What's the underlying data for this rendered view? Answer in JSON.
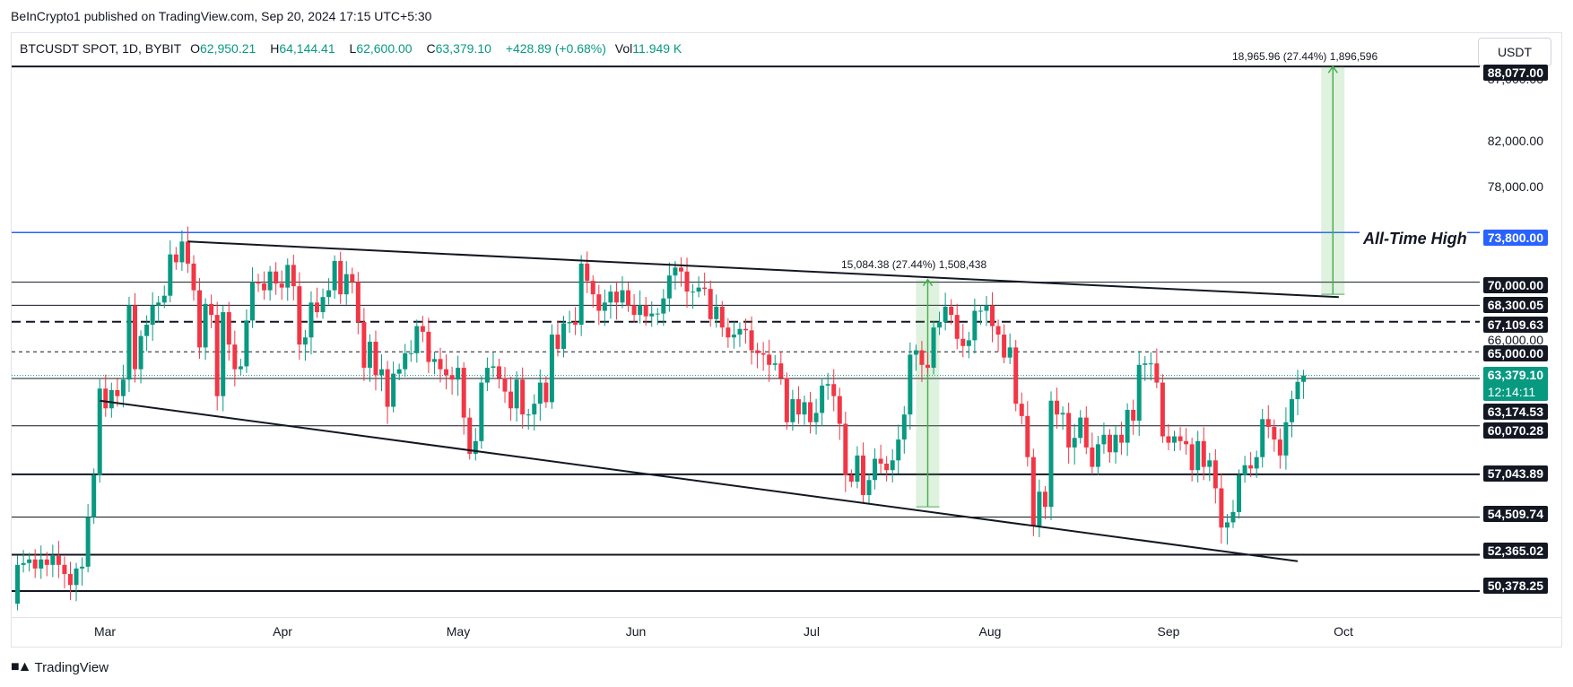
{
  "header": {
    "publish_line": "BeInCrypto1 published on TradingView.com, Sep 20, 2024 17:15 UTC+5:30"
  },
  "ohlc": {
    "symbol": "BTCUSDT SPOT, 1D, BYBIT",
    "open_label": "O",
    "open": "62,950.21",
    "high_label": "H",
    "high": "64,144.41",
    "low_label": "L",
    "low": "62,600.00",
    "close_label": "C",
    "close": "63,379.10",
    "change": "+428.89 (+0.68%)",
    "vol_label": "Vol",
    "vol": "11.949 K"
  },
  "currency_button": "USDT",
  "annotations": {
    "ath_label": "All-Time High",
    "measure_a": "15,084.38 (27.44%) 1,508,438",
    "measure_b": "18,965.96 (27.44%) 1,896,596",
    "countdown": "12:14:11"
  },
  "price_tags": {
    "p88077": "88,077.00",
    "p87000": "87,000.00",
    "p82000": "82,000.00",
    "p78000": "78,000.00",
    "p73800": "73,800.00",
    "p70000": "70,000.00",
    "p68300": "68,300.05",
    "p67109": "67,109.63",
    "p66000": "66,000.00",
    "p65000": "65,000.00",
    "p63379": "63,379.10",
    "p63174": "63,174.53",
    "p60070": "60,070.28",
    "p57043": "57,043.89",
    "p54509": "54,509.74",
    "p52365": "52,365.02",
    "p50378": "50,378.25"
  },
  "months": [
    "Mar",
    "Apr",
    "May",
    "Jun",
    "Jul",
    "Aug",
    "Sep",
    "Oct"
  ],
  "footer": {
    "brand": "TradingView"
  },
  "colors": {
    "up": "#089981",
    "down": "#f23645",
    "ath": "#2962ff",
    "measure": "#4caf50"
  },
  "chart_data": {
    "type": "candlestick",
    "title": "BTCUSDT SPOT, 1D, BYBIT",
    "y_scale": "log",
    "ylim": [
      49000,
      91000
    ],
    "x_range": [
      "2024-02-13",
      "2024-10-20"
    ],
    "x_ticks": [
      "2024-03-01",
      "2024-04-01",
      "2024-05-01",
      "2024-06-01",
      "2024-07-01",
      "2024-08-01",
      "2024-09-01",
      "2024-10-01"
    ],
    "horizontal_levels": [
      {
        "price": 88077,
        "style": "solid-thick"
      },
      {
        "price": 73800,
        "style": "solid-blue"
      },
      {
        "price": 70000,
        "style": "solid"
      },
      {
        "price": 68300.05,
        "style": "solid"
      },
      {
        "price": 67109.63,
        "style": "dashed-thick"
      },
      {
        "price": 65000,
        "style": "dashed"
      },
      {
        "price": 63174.53,
        "style": "solid"
      },
      {
        "price": 60070.28,
        "style": "solid"
      },
      {
        "price": 57043.89,
        "style": "solid-thick"
      },
      {
        "price": 54509.74,
        "style": "solid"
      },
      {
        "price": 52365.02,
        "style": "solid-thick"
      },
      {
        "price": 50378.25,
        "style": "solid-thick"
      }
    ],
    "trendlines": [
      {
        "from": {
          "date": "2024-03-14",
          "price": 73100
        },
        "to": {
          "date": "2024-09-26",
          "price": 68900
        }
      },
      {
        "from": {
          "date": "2024-02-28",
          "price": 61700
        },
        "to": {
          "date": "2024-09-19",
          "price": 52000
        }
      }
    ],
    "measures": [
      {
        "x": "2024-07-18",
        "from": 55100,
        "to": 70200,
        "label": "15,084.38 (27.44%) 1,508,438"
      },
      {
        "x": "2024-09-25",
        "from": 69100,
        "to": 88077,
        "label": "18,965.96 (27.44%) 1,896,596"
      }
    ],
    "close_series": [
      [
        "2024-02-13",
        49700
      ],
      [
        "2024-02-14",
        51800
      ],
      [
        "2024-02-15",
        51900
      ],
      [
        "2024-02-16",
        52100
      ],
      [
        "2024-02-17",
        51600
      ],
      [
        "2024-02-18",
        52100
      ],
      [
        "2024-02-19",
        51800
      ],
      [
        "2024-02-20",
        52300
      ],
      [
        "2024-02-21",
        51800
      ],
      [
        "2024-02-22",
        51300
      ],
      [
        "2024-02-23",
        50700
      ],
      [
        "2024-02-24",
        51600
      ],
      [
        "2024-02-25",
        51700
      ],
      [
        "2024-02-26",
        54500
      ],
      [
        "2024-02-27",
        57000
      ],
      [
        "2024-02-28",
        62500
      ],
      [
        "2024-02-29",
        61200
      ],
      [
        "2024-03-01",
        62400
      ],
      [
        "2024-03-02",
        62000
      ],
      [
        "2024-03-03",
        63100
      ],
      [
        "2024-03-04",
        68300
      ],
      [
        "2024-03-05",
        63800
      ],
      [
        "2024-03-06",
        66100
      ],
      [
        "2024-03-07",
        66900
      ],
      [
        "2024-03-08",
        68300
      ],
      [
        "2024-03-09",
        68500
      ],
      [
        "2024-03-10",
        69000
      ],
      [
        "2024-03-11",
        72100
      ],
      [
        "2024-03-12",
        71500
      ],
      [
        "2024-03-13",
        73100
      ],
      [
        "2024-03-14",
        71400
      ],
      [
        "2024-03-15",
        69400
      ],
      [
        "2024-03-16",
        65300
      ],
      [
        "2024-03-17",
        68400
      ],
      [
        "2024-03-18",
        67600
      ],
      [
        "2024-03-19",
        62000
      ],
      [
        "2024-03-20",
        67800
      ],
      [
        "2024-03-21",
        65500
      ],
      [
        "2024-03-22",
        63800
      ],
      [
        "2024-03-23",
        64000
      ],
      [
        "2024-03-24",
        67200
      ],
      [
        "2024-03-25",
        70000
      ],
      [
        "2024-03-26",
        69900
      ],
      [
        "2024-03-27",
        69400
      ],
      [
        "2024-03-28",
        70800
      ],
      [
        "2024-03-29",
        69900
      ],
      [
        "2024-03-30",
        69600
      ],
      [
        "2024-03-31",
        71300
      ],
      [
        "2024-04-01",
        69700
      ],
      [
        "2024-04-02",
        65500
      ],
      [
        "2024-04-03",
        66000
      ],
      [
        "2024-04-04",
        68500
      ],
      [
        "2024-04-05",
        67800
      ],
      [
        "2024-04-06",
        68900
      ],
      [
        "2024-04-07",
        69400
      ],
      [
        "2024-04-08",
        71600
      ],
      [
        "2024-04-09",
        69100
      ],
      [
        "2024-04-10",
        70600
      ],
      [
        "2024-04-11",
        70000
      ],
      [
        "2024-04-12",
        67100
      ],
      [
        "2024-04-13",
        63900
      ],
      [
        "2024-04-14",
        65700
      ],
      [
        "2024-04-15",
        63400
      ],
      [
        "2024-04-16",
        63800
      ],
      [
        "2024-04-17",
        61300
      ],
      [
        "2024-04-18",
        63500
      ],
      [
        "2024-04-19",
        63800
      ],
      [
        "2024-04-20",
        64900
      ],
      [
        "2024-04-21",
        64900
      ],
      [
        "2024-04-22",
        66800
      ],
      [
        "2024-04-23",
        66400
      ],
      [
        "2024-04-24",
        64300
      ],
      [
        "2024-04-25",
        64500
      ],
      [
        "2024-04-26",
        63800
      ],
      [
        "2024-04-27",
        63400
      ],
      [
        "2024-04-28",
        63100
      ],
      [
        "2024-04-29",
        63900
      ],
      [
        "2024-04-30",
        60600
      ],
      [
        "2024-05-01",
        58300
      ],
      [
        "2024-05-02",
        59100
      ],
      [
        "2024-05-03",
        62900
      ],
      [
        "2024-05-04",
        63900
      ],
      [
        "2024-05-05",
        64000
      ],
      [
        "2024-05-06",
        63200
      ],
      [
        "2024-05-07",
        62300
      ],
      [
        "2024-05-08",
        61200
      ],
      [
        "2024-05-09",
        63100
      ],
      [
        "2024-05-10",
        60800
      ],
      [
        "2024-05-11",
        60800
      ],
      [
        "2024-05-12",
        61500
      ],
      [
        "2024-05-13",
        62900
      ],
      [
        "2024-05-14",
        61600
      ],
      [
        "2024-05-15",
        66200
      ],
      [
        "2024-05-16",
        65200
      ],
      [
        "2024-05-17",
        67000
      ],
      [
        "2024-05-18",
        67100
      ],
      [
        "2024-05-19",
        66900
      ],
      [
        "2024-05-20",
        71400
      ],
      [
        "2024-05-21",
        70100
      ],
      [
        "2024-05-22",
        69100
      ],
      [
        "2024-05-23",
        67900
      ],
      [
        "2024-05-24",
        68500
      ],
      [
        "2024-05-25",
        69300
      ],
      [
        "2024-05-26",
        68500
      ],
      [
        "2024-05-27",
        69400
      ],
      [
        "2024-05-28",
        68300
      ],
      [
        "2024-05-29",
        67600
      ],
      [
        "2024-05-30",
        68300
      ],
      [
        "2024-05-31",
        67500
      ],
      [
        "2024-06-01",
        67700
      ],
      [
        "2024-06-02",
        67700
      ],
      [
        "2024-06-03",
        68800
      ],
      [
        "2024-06-04",
        70500
      ],
      [
        "2024-06-05",
        71100
      ],
      [
        "2024-06-06",
        70800
      ],
      [
        "2024-06-07",
        69300
      ],
      [
        "2024-06-08",
        69300
      ],
      [
        "2024-06-09",
        69600
      ],
      [
        "2024-06-10",
        69500
      ],
      [
        "2024-06-11",
        67300
      ],
      [
        "2024-06-12",
        68200
      ],
      [
        "2024-06-13",
        66700
      ],
      [
        "2024-06-14",
        66000
      ],
      [
        "2024-06-15",
        66200
      ],
      [
        "2024-06-16",
        66600
      ],
      [
        "2024-06-17",
        66500
      ],
      [
        "2024-06-18",
        65100
      ],
      [
        "2024-06-19",
        64900
      ],
      [
        "2024-06-20",
        64800
      ],
      [
        "2024-06-21",
        64100
      ],
      [
        "2024-06-22",
        64200
      ],
      [
        "2024-06-23",
        63200
      ],
      [
        "2024-06-24",
        60300
      ],
      [
        "2024-06-25",
        61800
      ],
      [
        "2024-06-26",
        60800
      ],
      [
        "2024-06-27",
        61600
      ],
      [
        "2024-06-28",
        60300
      ],
      [
        "2024-06-29",
        60900
      ],
      [
        "2024-06-30",
        62700
      ],
      [
        "2024-07-01",
        62800
      ],
      [
        "2024-07-02",
        62000
      ],
      [
        "2024-07-03",
        60200
      ],
      [
        "2024-07-04",
        57000
      ],
      [
        "2024-07-05",
        56600
      ],
      [
        "2024-07-06",
        58200
      ],
      [
        "2024-07-07",
        55800
      ],
      [
        "2024-07-08",
        56700
      ],
      [
        "2024-07-09",
        58000
      ],
      [
        "2024-07-10",
        57700
      ],
      [
        "2024-07-11",
        57300
      ],
      [
        "2024-07-12",
        57900
      ],
      [
        "2024-07-13",
        59200
      ],
      [
        "2024-07-14",
        60800
      ],
      [
        "2024-07-15",
        64800
      ],
      [
        "2024-07-16",
        65100
      ],
      [
        "2024-07-17",
        64100
      ],
      [
        "2024-07-18",
        63900
      ],
      [
        "2024-07-19",
        66700
      ],
      [
        "2024-07-20",
        67100
      ],
      [
        "2024-07-21",
        68200
      ],
      [
        "2024-07-22",
        67600
      ],
      [
        "2024-07-23",
        65900
      ],
      [
        "2024-07-24",
        65400
      ],
      [
        "2024-07-25",
        65800
      ],
      [
        "2024-07-26",
        67900
      ],
      [
        "2024-07-27",
        67900
      ],
      [
        "2024-07-28",
        68300
      ],
      [
        "2024-07-29",
        66800
      ],
      [
        "2024-07-30",
        66200
      ],
      [
        "2024-07-31",
        64600
      ],
      [
        "2024-08-01",
        65300
      ],
      [
        "2024-08-02",
        61500
      ],
      [
        "2024-08-03",
        60700
      ],
      [
        "2024-08-04",
        58100
      ],
      [
        "2024-08-05",
        54000
      ],
      [
        "2024-08-06",
        56000
      ],
      [
        "2024-08-07",
        55100
      ],
      [
        "2024-08-08",
        61700
      ],
      [
        "2024-08-09",
        60800
      ],
      [
        "2024-08-10",
        60900
      ],
      [
        "2024-08-11",
        58700
      ],
      [
        "2024-08-12",
        59300
      ],
      [
        "2024-08-13",
        60600
      ],
      [
        "2024-08-14",
        58700
      ],
      [
        "2024-08-15",
        57500
      ],
      [
        "2024-08-16",
        58900
      ],
      [
        "2024-08-17",
        59500
      ],
      [
        "2024-08-18",
        58400
      ],
      [
        "2024-08-19",
        59500
      ],
      [
        "2024-08-20",
        59000
      ],
      [
        "2024-08-21",
        61100
      ],
      [
        "2024-08-22",
        60400
      ],
      [
        "2024-08-23",
        64100
      ],
      [
        "2024-08-24",
        64200
      ],
      [
        "2024-08-25",
        64200
      ],
      [
        "2024-08-26",
        62900
      ],
      [
        "2024-08-27",
        59400
      ],
      [
        "2024-08-28",
        59000
      ],
      [
        "2024-08-29",
        59400
      ],
      [
        "2024-08-30",
        59100
      ],
      [
        "2024-08-31",
        58900
      ],
      [
        "2024-09-01",
        57300
      ],
      [
        "2024-09-02",
        59100
      ],
      [
        "2024-09-03",
        57500
      ],
      [
        "2024-09-04",
        57900
      ],
      [
        "2024-09-05",
        56200
      ],
      [
        "2024-09-06",
        53900
      ],
      [
        "2024-09-07",
        54200
      ],
      [
        "2024-09-08",
        54800
      ],
      [
        "2024-09-09",
        57000
      ],
      [
        "2024-09-10",
        57600
      ],
      [
        "2024-09-11",
        57400
      ],
      [
        "2024-09-12",
        58100
      ],
      [
        "2024-09-13",
        60500
      ],
      [
        "2024-09-14",
        60000
      ],
      [
        "2024-09-15",
        59200
      ],
      [
        "2024-09-16",
        58200
      ],
      [
        "2024-09-17",
        60300
      ],
      [
        "2024-09-18",
        61800
      ],
      [
        "2024-09-19",
        62950
      ],
      [
        "2024-09-20",
        63379.1
      ]
    ]
  }
}
